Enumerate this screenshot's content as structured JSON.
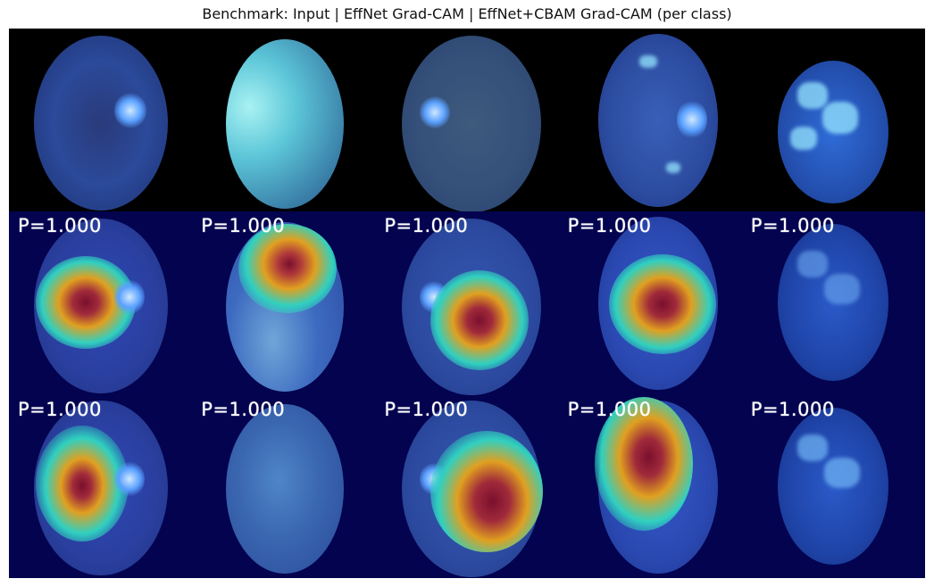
{
  "figure": {
    "title": "Benchmark: Input | EffNet Grad-CAM | EffNet+CBAM Grad-CAM (per class)"
  },
  "rows": [
    {
      "name": "input",
      "probs": []
    },
    {
      "name": "effnet_gradcam",
      "probs": [
        "P=1.000",
        "P=1.000",
        "P=1.000",
        "P=1.000",
        "P=1.000"
      ]
    },
    {
      "name": "effnet_cbam_gradcam",
      "probs": [
        "P=1.000",
        "P=1.000",
        "P=1.000",
        "P=1.000",
        "P=1.000"
      ]
    }
  ],
  "colors": {
    "background_input": "#000000",
    "background_cam": "#03034f",
    "heat_core": "#7a0f2e",
    "heat_mid": "#e0a020",
    "heat_outer": "#30d0c0"
  }
}
